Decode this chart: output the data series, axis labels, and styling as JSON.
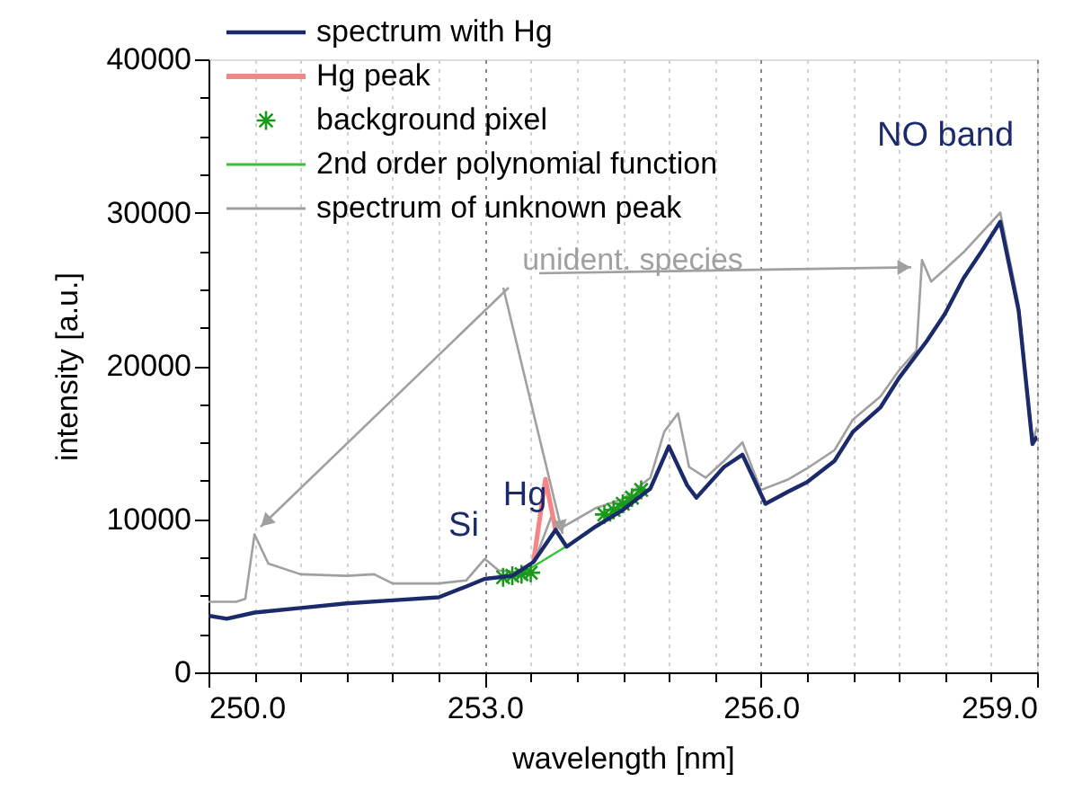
{
  "chart_data": {
    "type": "line",
    "xlabel": "wavelength [nm]",
    "ylabel": "intensity [a.u.]",
    "xlim": [
      250,
      259
    ],
    "ylim": [
      0,
      40000
    ],
    "xticks": [
      {
        "value": 250,
        "label": "250.0"
      },
      {
        "value": 250.5,
        "label": null
      },
      {
        "value": 251,
        "label": null
      },
      {
        "value": 251.5,
        "label": null
      },
      {
        "value": 252,
        "label": null
      },
      {
        "value": 252.5,
        "label": null
      },
      {
        "value": 253,
        "label": "253.0"
      },
      {
        "value": 253.5,
        "label": null
      },
      {
        "value": 254,
        "label": null
      },
      {
        "value": 254.5,
        "label": null
      },
      {
        "value": 255,
        "label": null
      },
      {
        "value": 255.5,
        "label": null
      },
      {
        "value": 256,
        "label": "256.0"
      },
      {
        "value": 256.5,
        "label": null
      },
      {
        "value": 257,
        "label": null
      },
      {
        "value": 257.5,
        "label": null
      },
      {
        "value": 258,
        "label": null
      },
      {
        "value": 258.5,
        "label": null
      },
      {
        "value": 259,
        "label": "259.0"
      }
    ],
    "yticks": [
      0,
      {
        "value": 2500,
        "label": null
      },
      {
        "value": 5000,
        "label": null
      },
      {
        "value": 7500,
        "label": null
      },
      10000,
      {
        "value": 12500,
        "label": null
      },
      {
        "value": 15000,
        "label": null
      },
      {
        "value": 17500,
        "label": null
      },
      20000,
      {
        "value": 22500,
        "label": null
      },
      {
        "value": 25000,
        "label": null
      },
      {
        "value": 27500,
        "label": null
      },
      30000,
      {
        "value": 32500,
        "label": null
      },
      {
        "value": 35000,
        "label": null
      },
      {
        "value": 37500,
        "label": null
      },
      40000
    ],
    "grid": "x",
    "legend": "top left",
    "line_style": "solid",
    "series": [
      {
        "name": "spectrum with Hg",
        "color": "#1b2a6b",
        "x": [
          250,
          250.2,
          250.5,
          251,
          251.5,
          252,
          252.5,
          252.8,
          253,
          253.3,
          253.53,
          253.77,
          253.89,
          254.2,
          254.5,
          254.8,
          255,
          255.2,
          255.3,
          255.6,
          255.8,
          256.05,
          256.3,
          256.5,
          256.8,
          257,
          257.3,
          257.5,
          257.8,
          258,
          258.2,
          258.4,
          258.6,
          258.8,
          258.95,
          259
        ],
        "values": [
          3700,
          3500,
          3900,
          4200,
          4500,
          4700,
          4900,
          5600,
          6100,
          6300,
          7200,
          9300,
          8200,
          9500,
          10600,
          12000,
          14750,
          12200,
          11400,
          13400,
          14200,
          11000,
          11800,
          12400,
          13800,
          15700,
          17300,
          19200,
          21600,
          23400,
          25700,
          27500,
          29400,
          23600,
          14900,
          15400
        ]
      },
      {
        "name": "Hg peak",
        "color": "#f4868a",
        "x": [
          253.53,
          253.66,
          253.77
        ],
        "values": [
          7200,
          12600,
          9300
        ]
      },
      {
        "name": "background pixel",
        "type": "scatter",
        "marker": "cross",
        "color": "#1a9a1a",
        "x": [
          253.2,
          253.3,
          253.4,
          253.5,
          254.3,
          254.4,
          254.5,
          254.6,
          254.7
        ],
        "values": [
          6200,
          6300,
          6400,
          6500,
          10300,
          10600,
          11000,
          11400,
          11900
        ]
      },
      {
        "name": "2nd order polynomial function",
        "color": "#33c633",
        "x": [
          253.3,
          253.5,
          253.8,
          254.1,
          254.4,
          254.75
        ],
        "values": [
          6200,
          6800,
          7900,
          9000,
          10300,
          12000
        ]
      },
      {
        "name": "spectrum of  unknown peak",
        "color": "#a0a0a0",
        "x": [
          250,
          250.3,
          250.4,
          250.5,
          250.65,
          251,
          251.5,
          251.8,
          252,
          252.5,
          252.8,
          253,
          253.15,
          253.4,
          253.55,
          253.72,
          253.85,
          254,
          254.2,
          254.5,
          254.8,
          254.95,
          255.1,
          255.22,
          255.4,
          255.6,
          255.8,
          256,
          256.3,
          256.5,
          256.8,
          257,
          257.3,
          257.5,
          257.69,
          257.75,
          257.85,
          258,
          258.2,
          258.4,
          258.6,
          258.8,
          258.95,
          259
        ],
        "values": [
          4600,
          4600,
          4800,
          9000,
          7100,
          6400,
          6300,
          6400,
          5800,
          5800,
          6000,
          7400,
          6650,
          6500,
          7400,
          10100,
          9500,
          10000,
          10700,
          11300,
          12700,
          15700,
          16900,
          13400,
          12700,
          13800,
          15000,
          11900,
          12600,
          13300,
          14500,
          16500,
          18000,
          19700,
          21000,
          26900,
          25500,
          26300,
          27400,
          28700,
          30000,
          24000,
          15100,
          16000
        ]
      }
    ],
    "annotations": [
      "Si",
      "Hg",
      "NO band",
      {
        "text": "unident. species",
        "x": 257.75,
        "y": 26900
      }
    ]
  }
}
